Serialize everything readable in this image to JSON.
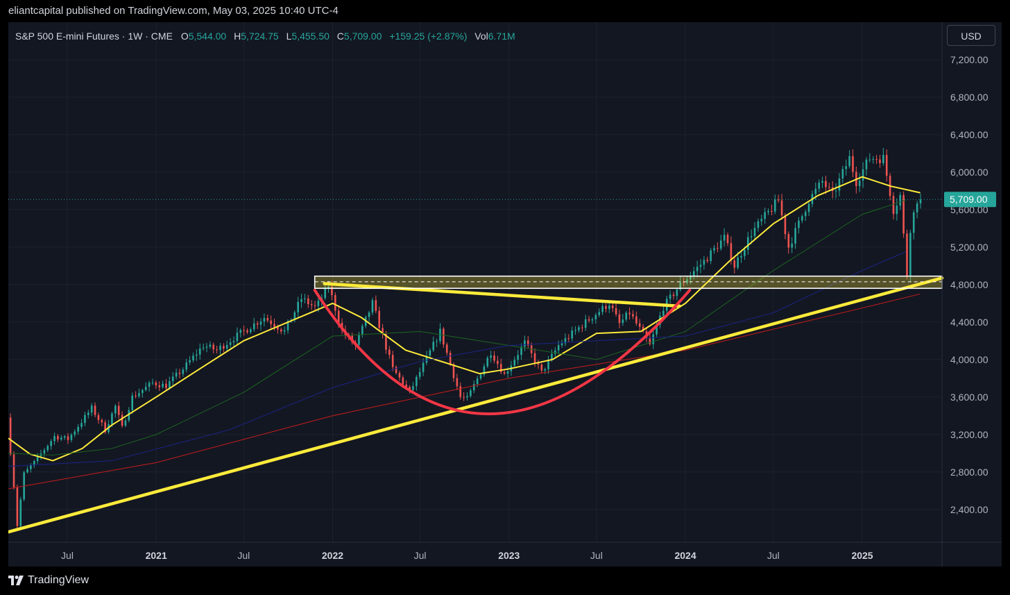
{
  "header": {
    "publisher_line": "eliantcapital published on TradingView.com, May 03, 2025 10:40 UTC-4"
  },
  "legend": {
    "title": "S&P 500 E-mini Futures · 1W · CME",
    "open_label": "O",
    "open": "5,544.00",
    "high_label": "H",
    "high": "5,724.75",
    "low_label": "L",
    "low": "5,455.50",
    "close_label": "C",
    "close": "5,709.00",
    "change": "+159.25 (+2.87%)",
    "vol_label": "Vol",
    "vol": "6.71M"
  },
  "currency_button": "USD",
  "footer": {
    "brand": "TradingView"
  },
  "colors": {
    "background": "#131722",
    "grid": "#1e222d",
    "up": "#26a69a",
    "down": "#ef5350",
    "price_tag": "#26a69a",
    "trendline": "#ffeb3b",
    "cup_arc": "#f23645",
    "ma_yellow": "#ffeb3b",
    "ma_green": "#1b5e20",
    "ma_blue": "#1a237e",
    "ma_red": "#b71c1c"
  },
  "chart_data": {
    "type": "candlestick",
    "y_axis": {
      "ticks": [
        2400,
        2800,
        3200,
        3600,
        4000,
        4400,
        4800,
        5200,
        5600,
        6000,
        6400,
        6800,
        7200
      ],
      "tick_labels": [
        "2,400.00",
        "2,800.00",
        "3,200.00",
        "3,600.00",
        "4,000.00",
        "4,400.00",
        "4,800.00",
        "5,200.00",
        "5,600.00",
        "6,000.00",
        "6,400.00",
        "6,800.00",
        "7,200.00"
      ],
      "range": [
        2050,
        7600
      ]
    },
    "x_axis": {
      "range": [
        "2020-03-01",
        "2025-06-15"
      ],
      "ticks": [
        {
          "date": "2020-07-01",
          "label": "Jul",
          "year": false
        },
        {
          "date": "2021-01-01",
          "label": "2021",
          "year": true
        },
        {
          "date": "2021-07-01",
          "label": "Jul",
          "year": false
        },
        {
          "date": "2022-01-01",
          "label": "2022",
          "year": true
        },
        {
          "date": "2022-07-01",
          "label": "Jul",
          "year": false
        },
        {
          "date": "2023-01-01",
          "label": "2023",
          "year": true
        },
        {
          "date": "2023-07-01",
          "label": "Jul",
          "year": false
        },
        {
          "date": "2024-01-01",
          "label": "2024",
          "year": true
        },
        {
          "date": "2024-07-01",
          "label": "Jul",
          "year": false
        },
        {
          "date": "2025-01-01",
          "label": "2025",
          "year": true
        }
      ]
    },
    "last_price": 5709,
    "last_price_label": "5,709.00",
    "price_path": [
      [
        "2020-03-02",
        3380
      ],
      [
        "2020-03-16",
        2650
      ],
      [
        "2020-03-23",
        2230
      ],
      [
        "2020-04-06",
        2780
      ],
      [
        "2020-04-27",
        2900
      ],
      [
        "2020-06-08",
        3180
      ],
      [
        "2020-07-06",
        3150
      ],
      [
        "2020-08-24",
        3480
      ],
      [
        "2020-09-21",
        3250
      ],
      [
        "2020-10-12",
        3500
      ],
      [
        "2020-10-26",
        3270
      ],
      [
        "2020-11-16",
        3600
      ],
      [
        "2020-12-28",
        3750
      ],
      [
        "2021-01-25",
        3720
      ],
      [
        "2021-03-01",
        3900
      ],
      [
        "2021-04-12",
        4150
      ],
      [
        "2021-05-10",
        4100
      ],
      [
        "2021-06-14",
        4230
      ],
      [
        "2021-08-16",
        4450
      ],
      [
        "2021-09-27",
        4300
      ],
      [
        "2021-11-01",
        4650
      ],
      [
        "2021-12-01",
        4550
      ],
      [
        "2021-12-27",
        4790
      ],
      [
        "2022-01-24",
        4300
      ],
      [
        "2022-02-21",
        4150
      ],
      [
        "2022-03-28",
        4600
      ],
      [
        "2022-05-09",
        3900
      ],
      [
        "2022-06-13",
        3650
      ],
      [
        "2022-08-15",
        4300
      ],
      [
        "2022-09-26",
        3600
      ],
      [
        "2022-10-10",
        3580
      ],
      [
        "2022-11-28",
        4080
      ],
      [
        "2022-12-26",
        3840
      ],
      [
        "2023-02-06",
        4180
      ],
      [
        "2023-03-13",
        3860
      ],
      [
        "2023-04-17",
        4150
      ],
      [
        "2023-06-12",
        4400
      ],
      [
        "2023-07-31",
        4600
      ],
      [
        "2023-08-21",
        4380
      ],
      [
        "2023-09-11",
        4500
      ],
      [
        "2023-10-23",
        4150
      ],
      [
        "2023-11-20",
        4560
      ],
      [
        "2023-12-25",
        4800
      ],
      [
        "2024-02-12",
        5050
      ],
      [
        "2024-03-25",
        5300
      ],
      [
        "2024-04-15",
        5000
      ],
      [
        "2024-05-20",
        5350
      ],
      [
        "2024-07-15",
        5700
      ],
      [
        "2024-08-05",
        5200
      ],
      [
        "2024-09-16",
        5700
      ],
      [
        "2024-10-14",
        5900
      ],
      [
        "2024-11-04",
        5750
      ],
      [
        "2024-12-09",
        6150
      ],
      [
        "2024-12-23",
        5900
      ],
      [
        "2025-01-20",
        6150
      ],
      [
        "2025-02-17",
        6150
      ],
      [
        "2025-03-10",
        5600
      ],
      [
        "2025-03-24",
        5750
      ],
      [
        "2025-04-07",
        4900
      ],
      [
        "2025-04-14",
        5400
      ],
      [
        "2025-04-28",
        5709
      ]
    ],
    "moving_averages": [
      {
        "color": "#ffeb3b",
        "points": [
          [
            "2020-03-01",
            3160
          ],
          [
            "2020-04-15",
            2990
          ],
          [
            "2020-06-01",
            2920
          ],
          [
            "2020-08-01",
            3050
          ],
          [
            "2020-10-01",
            3300
          ],
          [
            "2021-01-01",
            3600
          ],
          [
            "2021-04-01",
            3900
          ],
          [
            "2021-07-01",
            4200
          ],
          [
            "2021-10-01",
            4400
          ],
          [
            "2022-01-01",
            4600
          ],
          [
            "2022-03-01",
            4450
          ],
          [
            "2022-06-01",
            4100
          ],
          [
            "2022-09-01",
            3950
          ],
          [
            "2022-11-01",
            3850
          ],
          [
            "2023-01-01",
            3900
          ],
          [
            "2023-04-01",
            4000
          ],
          [
            "2023-07-01",
            4280
          ],
          [
            "2023-10-01",
            4300
          ],
          [
            "2024-01-01",
            4600
          ],
          [
            "2024-04-01",
            5050
          ],
          [
            "2024-07-01",
            5450
          ],
          [
            "2024-10-01",
            5750
          ],
          [
            "2025-01-01",
            5950
          ],
          [
            "2025-03-01",
            5850
          ],
          [
            "2025-05-01",
            5780
          ]
        ]
      },
      {
        "color": "#1b5e20",
        "points": [
          [
            "2020-03-01",
            3000
          ],
          [
            "2020-06-01",
            2980
          ],
          [
            "2020-10-01",
            3050
          ],
          [
            "2021-01-01",
            3200
          ],
          [
            "2021-07-01",
            3650
          ],
          [
            "2022-01-01",
            4250
          ],
          [
            "2022-07-01",
            4300
          ],
          [
            "2023-01-01",
            4150
          ],
          [
            "2023-07-01",
            4000
          ],
          [
            "2024-01-01",
            4300
          ],
          [
            "2024-07-01",
            4950
          ],
          [
            "2025-01-01",
            5550
          ],
          [
            "2025-04-01",
            5700
          ]
        ]
      },
      {
        "color": "#1a237e",
        "points": [
          [
            "2020-03-01",
            2860
          ],
          [
            "2020-10-01",
            2920
          ],
          [
            "2021-06-01",
            3250
          ],
          [
            "2022-01-01",
            3700
          ],
          [
            "2022-07-01",
            3980
          ],
          [
            "2023-01-01",
            4150
          ],
          [
            "2023-07-01",
            4200
          ],
          [
            "2024-01-01",
            4250
          ],
          [
            "2024-07-01",
            4500
          ],
          [
            "2025-01-01",
            4950
          ],
          [
            "2025-04-01",
            5150
          ]
        ]
      },
      {
        "color": "#b71c1c",
        "points": [
          [
            "2020-03-01",
            2620
          ],
          [
            "2021-01-01",
            2900
          ],
          [
            "2022-01-01",
            3400
          ],
          [
            "2023-01-01",
            3800
          ],
          [
            "2024-01-01",
            4100
          ],
          [
            "2025-01-01",
            4550
          ],
          [
            "2025-05-01",
            4700
          ]
        ]
      }
    ],
    "annotations": [
      {
        "kind": "trendline",
        "color": "#ffeb3b",
        "from": [
          "2020-03-01",
          2160
        ],
        "to": [
          "2025-06-15",
          4870
        ]
      },
      {
        "kind": "trendline",
        "color": "#ffeb3b",
        "from": [
          "2021-12-15",
          4810
        ],
        "to": [
          "2023-12-20",
          4570
        ]
      },
      {
        "kind": "zone",
        "color": "#ffffff",
        "from_date": "2021-11-25",
        "to_date": "2025-06-15",
        "low": 4760,
        "high": 4890,
        "mid": 4830
      },
      {
        "kind": "cup_arc",
        "color": "#f23645",
        "from": [
          "2021-11-25",
          4740
        ],
        "bottom": [
          "2022-11-20",
          3420
        ],
        "to": [
          "2024-01-10",
          4740
        ]
      }
    ]
  }
}
